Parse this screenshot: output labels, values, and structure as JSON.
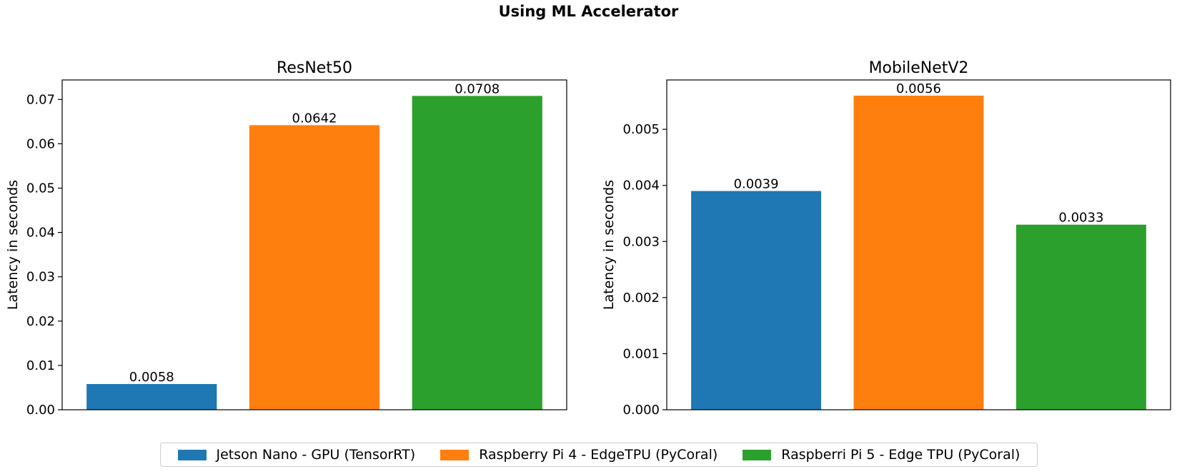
{
  "figure": {
    "title": "Using ML Accelerator"
  },
  "chart_data": [
    {
      "type": "bar",
      "title": "ResNet50",
      "xlabel": "",
      "ylabel": "Latency in seconds",
      "categories": [
        "Jetson Nano - GPU (TensorRT)",
        "Raspberry Pi 4 - EdgeTPU (PyCoral)",
        "Raspberri Pi 5 - Edge TPU (PyCoral)"
      ],
      "values": [
        0.0058,
        0.0642,
        0.0708
      ],
      "data_labels": [
        "0.0058",
        "0.0642",
        "0.0708"
      ],
      "colors": [
        "#1f77b4",
        "#ff7f0e",
        "#2ca02c"
      ],
      "ylim": [
        0,
        0.0744
      ],
      "yticks": [
        0.0,
        0.01,
        0.02,
        0.03,
        0.04,
        0.05,
        0.06,
        0.07
      ],
      "ytick_labels": [
        "0.00",
        "0.01",
        "0.02",
        "0.03",
        "0.04",
        "0.05",
        "0.06",
        "0.07"
      ],
      "grid": false
    },
    {
      "type": "bar",
      "title": "MobileNetV2",
      "xlabel": "",
      "ylabel": "Latency in seconds",
      "categories": [
        "Jetson Nano - GPU (TensorRT)",
        "Raspberry Pi 4 - EdgeTPU (PyCoral)",
        "Raspberri Pi 5 - Edge TPU (PyCoral)"
      ],
      "values": [
        0.0039,
        0.0056,
        0.0033
      ],
      "data_labels": [
        "0.0039",
        "0.0056",
        "0.0033"
      ],
      "colors": [
        "#1f77b4",
        "#ff7f0e",
        "#2ca02c"
      ],
      "ylim": [
        0,
        0.00588
      ],
      "yticks": [
        0.0,
        0.001,
        0.002,
        0.003,
        0.004,
        0.005
      ],
      "ytick_labels": [
        "0.000",
        "0.001",
        "0.002",
        "0.003",
        "0.004",
        "0.005"
      ],
      "grid": false
    }
  ],
  "legend": {
    "placement": "bottom-center",
    "entries": [
      {
        "label": "Jetson Nano - GPU (TensorRT)",
        "color": "#1f77b4"
      },
      {
        "label": "Raspberry Pi 4 - EdgeTPU (PyCoral)",
        "color": "#ff7f0e"
      },
      {
        "label": "Raspberri Pi 5 - Edge TPU (PyCoral)",
        "color": "#2ca02c"
      }
    ]
  }
}
